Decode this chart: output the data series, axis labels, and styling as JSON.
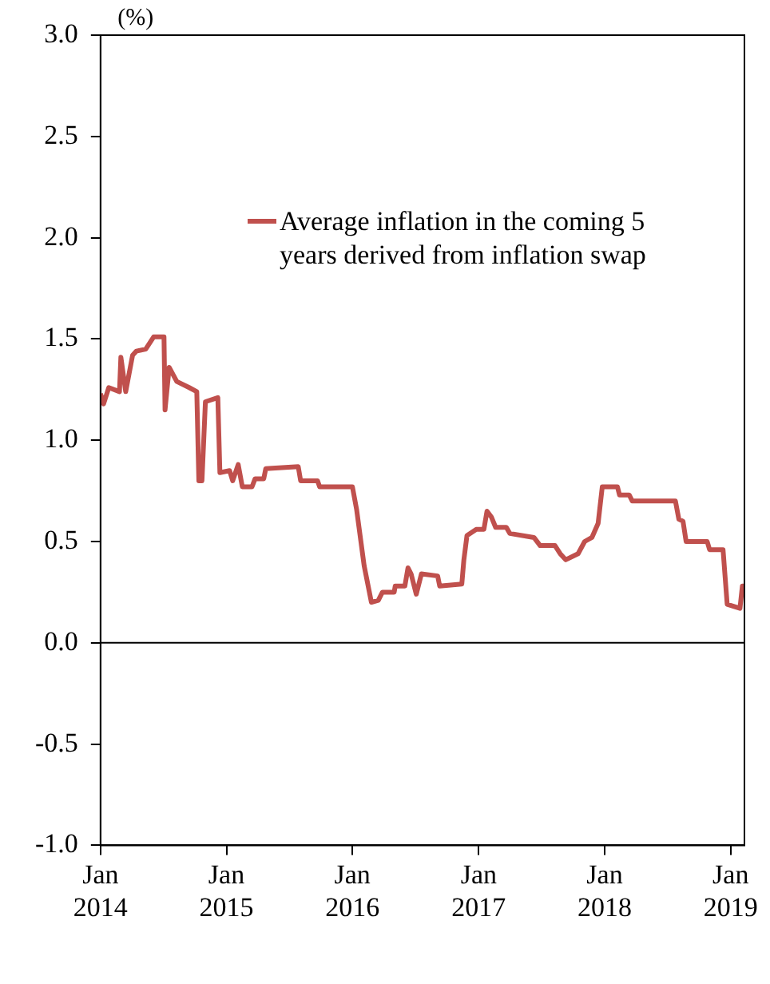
{
  "chart_data": {
    "type": "line",
    "ylabel": "(%)",
    "xlim": [
      "2014-01-01",
      "2019-02-10"
    ],
    "xticks": [
      {
        "value": "2014-01-01",
        "label": "Jan\n2014"
      },
      {
        "value": "2015-01-01",
        "label": "Jan\n2015"
      },
      {
        "value": "2016-01-01",
        "label": "Jan\n2016"
      },
      {
        "value": "2017-01-01",
        "label": "Jan\n2017"
      },
      {
        "value": "2018-01-01",
        "label": "Jan\n2018"
      },
      {
        "value": "2019-01-01",
        "label": "Jan\n2019"
      }
    ],
    "ylim": [
      -1,
      3
    ],
    "yticks": [
      {
        "value": -1,
        "label": "-1.0"
      },
      {
        "value": -0.5,
        "label": "-0.5"
      },
      {
        "value": 0,
        "label": "0.0"
      },
      {
        "value": 0.5,
        "label": "0.5"
      },
      {
        "value": 1,
        "label": "1.0"
      },
      {
        "value": 1.5,
        "label": "1.5"
      },
      {
        "value": 2,
        "label": "2.0"
      },
      {
        "value": 2.5,
        "label": "2.5"
      },
      {
        "value": 3,
        "label": "3.0"
      }
    ],
    "grid": false,
    "legend": "top right",
    "marker": "none",
    "line_style": "solid",
    "ref_lines": [
      {
        "axis": "y",
        "value": 0,
        "color": "#000000"
      }
    ],
    "x": [
      "2014-01-01",
      "2014-01-10",
      "2014-01-25",
      "2014-02-25",
      "2014-03-01",
      "2014-03-15",
      "2014-04-04",
      "2014-04-15",
      "2014-05-12",
      "2014-06-04",
      "2014-07-04",
      "2014-07-07",
      "2014-07-19",
      "2014-08-10",
      "2014-09-15",
      "2014-10-07",
      "2014-10-13",
      "2014-10-22",
      "2014-11-01",
      "2014-12-07",
      "2014-12-13",
      "2015-01-10",
      "2015-01-19",
      "2015-02-04",
      "2015-02-16",
      "2015-03-16",
      "2015-03-25",
      "2015-04-19",
      "2015-04-25",
      "2015-07-28",
      "2015-08-04",
      "2015-09-22",
      "2015-09-28",
      "2016-01-01",
      "2016-01-13",
      "2016-02-04",
      "2016-02-25",
      "2016-03-16",
      "2016-03-28",
      "2016-05-01",
      "2016-05-04",
      "2016-06-01",
      "2016-06-10",
      "2016-06-19",
      "2016-07-04",
      "2016-07-19",
      "2016-09-04",
      "2016-09-10",
      "2016-11-13",
      "2016-11-19",
      "2016-11-28",
      "2016-12-25",
      "2017-01-16",
      "2017-01-25",
      "2017-02-07",
      "2017-02-19",
      "2017-03-22",
      "2017-04-01",
      "2017-06-10",
      "2017-06-28",
      "2017-08-10",
      "2017-08-25",
      "2017-09-10",
      "2017-10-16",
      "2017-11-04",
      "2017-11-25",
      "2017-12-13",
      "2017-12-25",
      "2018-02-07",
      "2018-02-13",
      "2018-03-13",
      "2018-03-22",
      "2018-07-25",
      "2018-08-04",
      "2018-08-16",
      "2018-08-25",
      "2018-10-25",
      "2018-11-01",
      "2018-12-10",
      "2018-12-22",
      "2019-01-28",
      "2019-02-04",
      "2019-02-10"
    ],
    "series": [
      {
        "name": "Average inflation in the coming 5 years derived from inflation swap",
        "color": "#c0504d",
        "values": [
          1.23,
          1.18,
          1.26,
          1.24,
          1.41,
          1.24,
          1.42,
          1.44,
          1.45,
          1.51,
          1.51,
          1.15,
          1.36,
          1.29,
          1.26,
          1.24,
          0.8,
          0.8,
          1.19,
          1.21,
          0.84,
          0.85,
          0.8,
          0.88,
          0.77,
          0.77,
          0.81,
          0.81,
          0.86,
          0.87,
          0.8,
          0.8,
          0.77,
          0.77,
          0.66,
          0.38,
          0.2,
          0.21,
          0.25,
          0.25,
          0.28,
          0.28,
          0.37,
          0.34,
          0.24,
          0.34,
          0.33,
          0.28,
          0.29,
          0.41,
          0.53,
          0.56,
          0.56,
          0.65,
          0.62,
          0.57,
          0.57,
          0.54,
          0.52,
          0.48,
          0.48,
          0.44,
          0.41,
          0.44,
          0.5,
          0.52,
          0.59,
          0.77,
          0.77,
          0.73,
          0.73,
          0.7,
          0.7,
          0.61,
          0.6,
          0.5,
          0.5,
          0.46,
          0.46,
          0.19,
          0.17,
          0.28,
          0.28
        ]
      }
    ]
  }
}
